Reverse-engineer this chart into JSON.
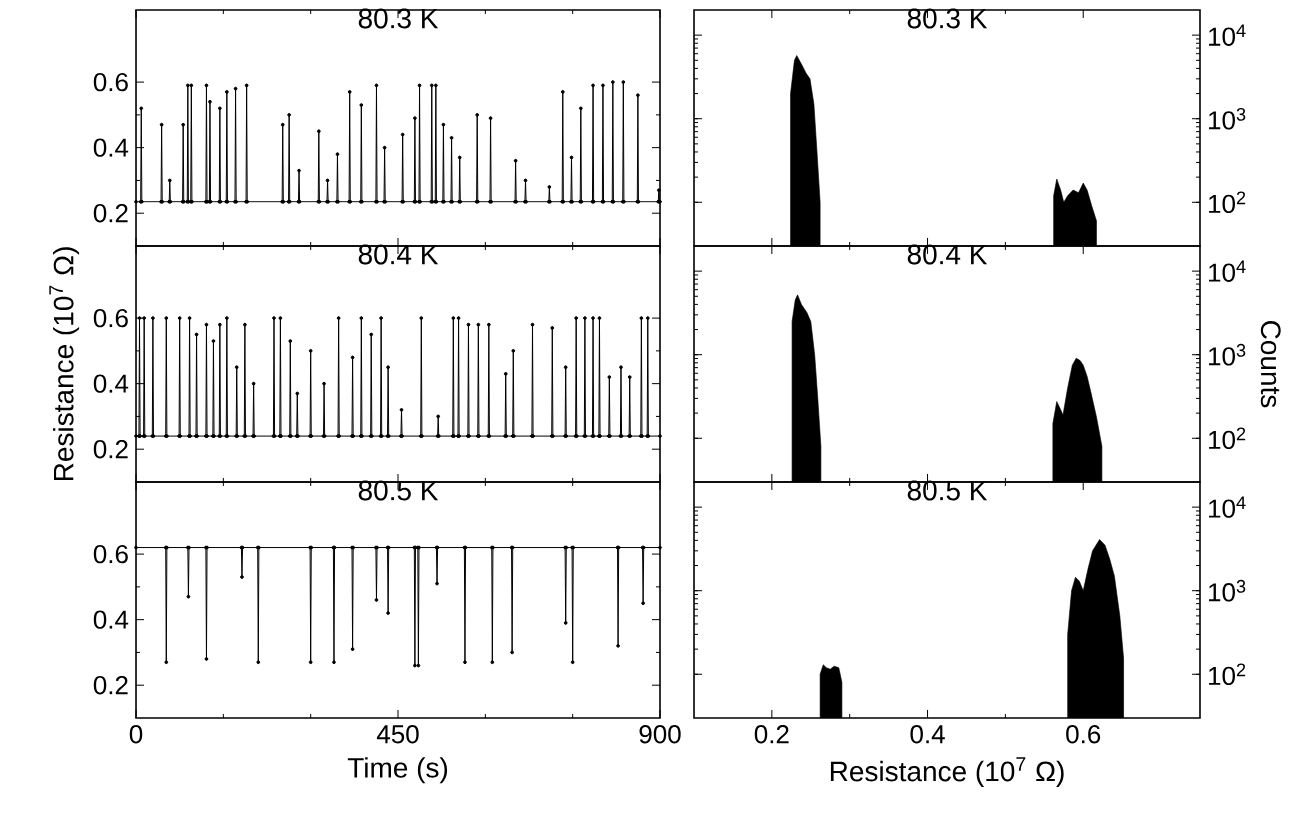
{
  "chart_data": [
    {
      "type": "line",
      "title": "80.3 K",
      "color": "#000000",
      "marker": "circle",
      "tick_labels": "y",
      "xlim": [
        0,
        900
      ],
      "xticks": [
        0,
        450,
        900
      ],
      "ylim": [
        0.1,
        0.82
      ],
      "yticks": [
        0.2,
        0.4,
        0.6
      ],
      "x": [
        0,
        8,
        9,
        10,
        43,
        44,
        45,
        57,
        58,
        59,
        80,
        81,
        82,
        88,
        89,
        90,
        94,
        95,
        96,
        120,
        121,
        122,
        126,
        127,
        128,
        143,
        144,
        145,
        155,
        156,
        157,
        170,
        171,
        172,
        189,
        190,
        191,
        251,
        252,
        253,
        262,
        263,
        264,
        279,
        280,
        281,
        313,
        314,
        315,
        328,
        329,
        330,
        345,
        346,
        347,
        366,
        367,
        368,
        386,
        387,
        388,
        412,
        413,
        414,
        426,
        427,
        428,
        457,
        458,
        459,
        478,
        479,
        480,
        486,
        487,
        488,
        507,
        508,
        509,
        514,
        515,
        516,
        527,
        528,
        529,
        541,
        542,
        543,
        555,
        556,
        557,
        585,
        586,
        587,
        608,
        609,
        610,
        651,
        652,
        653,
        668,
        669,
        670,
        709,
        710,
        711,
        732,
        733,
        734,
        747,
        748,
        749,
        763,
        764,
        765,
        784,
        785,
        786,
        801,
        802,
        803,
        818,
        819,
        820,
        836,
        837,
        838,
        861,
        862,
        863,
        897,
        898,
        899,
        900
      ],
      "values": [
        0.235,
        0.235,
        0.52,
        0.235,
        0.235,
        0.47,
        0.235,
        0.235,
        0.3,
        0.235,
        0.235,
        0.47,
        0.235,
        0.235,
        0.59,
        0.235,
        0.235,
        0.59,
        0.235,
        0.235,
        0.59,
        0.235,
        0.235,
        0.54,
        0.235,
        0.235,
        0.52,
        0.235,
        0.235,
        0.57,
        0.235,
        0.235,
        0.58,
        0.235,
        0.235,
        0.59,
        0.235,
        0.235,
        0.47,
        0.235,
        0.235,
        0.5,
        0.235,
        0.235,
        0.33,
        0.235,
        0.235,
        0.45,
        0.235,
        0.235,
        0.3,
        0.235,
        0.235,
        0.38,
        0.235,
        0.235,
        0.57,
        0.235,
        0.235,
        0.53,
        0.235,
        0.235,
        0.59,
        0.235,
        0.235,
        0.4,
        0.235,
        0.235,
        0.44,
        0.235,
        0.235,
        0.49,
        0.235,
        0.235,
        0.59,
        0.235,
        0.235,
        0.59,
        0.235,
        0.235,
        0.59,
        0.235,
        0.235,
        0.47,
        0.235,
        0.235,
        0.43,
        0.235,
        0.235,
        0.37,
        0.235,
        0.235,
        0.5,
        0.235,
        0.235,
        0.49,
        0.235,
        0.235,
        0.36,
        0.235,
        0.235,
        0.3,
        0.235,
        0.235,
        0.28,
        0.235,
        0.235,
        0.57,
        0.235,
        0.235,
        0.37,
        0.235,
        0.235,
        0.52,
        0.235,
        0.235,
        0.59,
        0.235,
        0.235,
        0.59,
        0.235,
        0.235,
        0.6,
        0.235,
        0.235,
        0.6,
        0.235,
        0.235,
        0.56,
        0.235,
        0.235,
        0.27,
        0.235,
        0.235
      ]
    },
    {
      "type": "area",
      "title": "80.3 K",
      "color": "#000000",
      "log": "y",
      "tick_labels": "y",
      "xlim": [
        0.1,
        0.75
      ],
      "xticks": [
        0.2,
        0.4,
        0.6
      ],
      "ylim": [
        30,
        20000
      ],
      "yticks": [
        {
          "value": 100,
          "label": "10$^{2}$"
        },
        {
          "value": 1000,
          "label": "10$^{3}$"
        },
        {
          "value": 10000,
          "label": "10$^{4}$"
        }
      ],
      "series": [
        {
          "x": [
            0.224,
            0.229,
            0.232,
            0.238,
            0.244,
            0.249,
            0.254,
            0.258,
            0.262
          ],
          "values": [
            2000,
            5000,
            5700,
            4500,
            3500,
            3000,
            1500,
            400,
            100
          ]
        },
        {
          "x": [
            0.562,
            0.566,
            0.571,
            0.575,
            0.58,
            0.587,
            0.594,
            0.6,
            0.605,
            0.611,
            0.617
          ],
          "values": [
            120,
            190,
            140,
            100,
            120,
            140,
            130,
            170,
            140,
            90,
            60
          ]
        }
      ]
    },
    {
      "type": "line",
      "title": "80.4 K",
      "ylabel": "Resistance (10$^{7}$ Ω)",
      "color": "#000000",
      "marker": "circle",
      "tick_labels": "y",
      "xlim": [
        0,
        900
      ],
      "xticks": [
        0,
        450,
        900
      ],
      "ylim": [
        0.1,
        0.82
      ],
      "yticks": [
        0.2,
        0.4,
        0.6
      ],
      "x": [
        0,
        5,
        6,
        7,
        13,
        14,
        15,
        28,
        29,
        30,
        51,
        52,
        53,
        74,
        75,
        76,
        91,
        92,
        93,
        103,
        104,
        105,
        120,
        121,
        122,
        132,
        133,
        134,
        143,
        144,
        145,
        155,
        156,
        157,
        172,
        173,
        174,
        186,
        187,
        188,
        201,
        202,
        203,
        236,
        237,
        238,
        247,
        248,
        249,
        264,
        265,
        266,
        276,
        277,
        278,
        299,
        300,
        301,
        322,
        323,
        324,
        347,
        348,
        349,
        371,
        372,
        373,
        386,
        387,
        388,
        403,
        404,
        405,
        420,
        421,
        422,
        432,
        433,
        434,
        455,
        456,
        457,
        489,
        490,
        491,
        518,
        519,
        520,
        544,
        545,
        546,
        553,
        554,
        555,
        570,
        571,
        572,
        587,
        588,
        589,
        605,
        606,
        607,
        634,
        635,
        636,
        647,
        648,
        649,
        680,
        681,
        682,
        714,
        715,
        716,
        737,
        738,
        739,
        755,
        756,
        757,
        770,
        771,
        772,
        784,
        785,
        786,
        795,
        796,
        797,
        812,
        813,
        814,
        832,
        833,
        834,
        847,
        848,
        849,
        867,
        868,
        869,
        878,
        879,
        880,
        900
      ],
      "values": [
        0.24,
        0.24,
        0.6,
        0.24,
        0.24,
        0.6,
        0.24,
        0.24,
        0.6,
        0.24,
        0.24,
        0.6,
        0.24,
        0.24,
        0.6,
        0.24,
        0.24,
        0.6,
        0.24,
        0.24,
        0.55,
        0.24,
        0.24,
        0.58,
        0.24,
        0.24,
        0.53,
        0.24,
        0.24,
        0.58,
        0.24,
        0.24,
        0.6,
        0.24,
        0.24,
        0.45,
        0.24,
        0.24,
        0.58,
        0.24,
        0.24,
        0.4,
        0.24,
        0.24,
        0.6,
        0.24,
        0.24,
        0.6,
        0.24,
        0.24,
        0.53,
        0.24,
        0.24,
        0.37,
        0.24,
        0.24,
        0.5,
        0.24,
        0.24,
        0.4,
        0.24,
        0.24,
        0.6,
        0.24,
        0.24,
        0.48,
        0.24,
        0.24,
        0.6,
        0.24,
        0.24,
        0.55,
        0.24,
        0.24,
        0.6,
        0.24,
        0.24,
        0.45,
        0.24,
        0.24,
        0.32,
        0.24,
        0.24,
        0.6,
        0.24,
        0.24,
        0.3,
        0.24,
        0.24,
        0.6,
        0.24,
        0.24,
        0.6,
        0.24,
        0.24,
        0.58,
        0.24,
        0.24,
        0.58,
        0.24,
        0.24,
        0.58,
        0.24,
        0.24,
        0.43,
        0.24,
        0.24,
        0.5,
        0.24,
        0.24,
        0.58,
        0.24,
        0.24,
        0.57,
        0.24,
        0.24,
        0.45,
        0.24,
        0.24,
        0.6,
        0.24,
        0.24,
        0.6,
        0.24,
        0.24,
        0.6,
        0.24,
        0.24,
        0.6,
        0.24,
        0.24,
        0.42,
        0.24,
        0.24,
        0.45,
        0.24,
        0.24,
        0.42,
        0.24,
        0.24,
        0.6,
        0.24,
        0.24,
        0.6,
        0.24,
        0.24
      ]
    },
    {
      "type": "area",
      "title": "80.4 K",
      "ylabel": "Counts",
      "color": "#000000",
      "log": "y",
      "tick_labels": "y",
      "xlim": [
        0.1,
        0.75
      ],
      "xticks": [
        0.2,
        0.4,
        0.6
      ],
      "ylim": [
        30,
        20000
      ],
      "yticks": [
        {
          "value": 100,
          "label": "10$^{2}$"
        },
        {
          "value": 1000,
          "label": "10$^{3}$"
        },
        {
          "value": 10000,
          "label": "10$^{4}$"
        }
      ],
      "series": [
        {
          "x": [
            0.226,
            0.23,
            0.233,
            0.238,
            0.245,
            0.25,
            0.255,
            0.259,
            0.263
          ],
          "values": [
            2500,
            4500,
            5200,
            4000,
            3200,
            2500,
            1000,
            300,
            80
          ]
        },
        {
          "x": [
            0.561,
            0.566,
            0.571,
            0.574,
            0.58,
            0.586,
            0.591,
            0.596,
            0.6,
            0.605,
            0.61,
            0.617,
            0.624
          ],
          "values": [
            150,
            275,
            220,
            190,
            400,
            750,
            910,
            850,
            750,
            550,
            350,
            180,
            80
          ]
        }
      ]
    },
    {
      "type": "line",
      "title": "80.5 K",
      "xlabel": "Time (s)",
      "color": "#000000",
      "marker": "circle",
      "xlim": [
        0,
        900
      ],
      "xticks": [
        0,
        450,
        900
      ],
      "ylim": [
        0.1,
        0.82
      ],
      "yticks": [
        0.2,
        0.4,
        0.6
      ],
      "x": [
        0,
        51,
        52,
        53,
        89,
        90,
        91,
        120,
        121,
        122,
        181,
        182,
        183,
        209,
        210,
        211,
        299,
        300,
        301,
        339,
        340,
        341,
        371,
        372,
        373,
        412,
        413,
        414,
        432,
        433,
        434,
        478,
        479,
        480,
        484,
        485,
        486,
        516,
        517,
        518,
        564,
        565,
        566,
        611,
        612,
        613,
        645,
        646,
        647,
        737,
        738,
        739,
        749,
        750,
        751,
        827,
        828,
        829,
        870,
        871,
        872,
        900
      ],
      "values": [
        0.62,
        0.62,
        0.27,
        0.62,
        0.62,
        0.47,
        0.62,
        0.62,
        0.28,
        0.62,
        0.62,
        0.53,
        0.62,
        0.62,
        0.27,
        0.62,
        0.62,
        0.27,
        0.62,
        0.62,
        0.27,
        0.62,
        0.62,
        0.31,
        0.62,
        0.62,
        0.46,
        0.62,
        0.62,
        0.42,
        0.62,
        0.62,
        0.26,
        0.62,
        0.62,
        0.26,
        0.62,
        0.62,
        0.51,
        0.62,
        0.62,
        0.27,
        0.62,
        0.62,
        0.27,
        0.62,
        0.62,
        0.3,
        0.62,
        0.62,
        0.39,
        0.62,
        0.62,
        0.27,
        0.62,
        0.62,
        0.32,
        0.62,
        0.62,
        0.45,
        0.62,
        0.62
      ]
    },
    {
      "type": "area",
      "title": "80.5 K",
      "xlabel": "Resistance (10$^{7}$ Ω)",
      "color": "#000000",
      "log": "y",
      "xlim": [
        0.1,
        0.75
      ],
      "xticks": [
        0.2,
        0.4,
        0.6
      ],
      "ylim": [
        30,
        20000
      ],
      "yticks": [
        {
          "value": 100,
          "label": "10$^{2}$"
        },
        {
          "value": 1000,
          "label": "10$^{3}$"
        },
        {
          "value": 10000,
          "label": "10$^{4}$"
        }
      ],
      "series": [
        {
          "x": [
            0.262,
            0.266,
            0.27,
            0.275,
            0.28,
            0.286,
            0.29
          ],
          "values": [
            100,
            130,
            120,
            115,
            125,
            120,
            80
          ]
        },
        {
          "x": [
            0.58,
            0.585,
            0.59,
            0.595,
            0.6,
            0.606,
            0.612,
            0.621,
            0.628,
            0.634,
            0.64,
            0.647,
            0.652
          ],
          "values": [
            300,
            1000,
            1450,
            1300,
            1000,
            1800,
            3000,
            4100,
            3500,
            2400,
            1500,
            500,
            150
          ]
        }
      ]
    }
  ]
}
